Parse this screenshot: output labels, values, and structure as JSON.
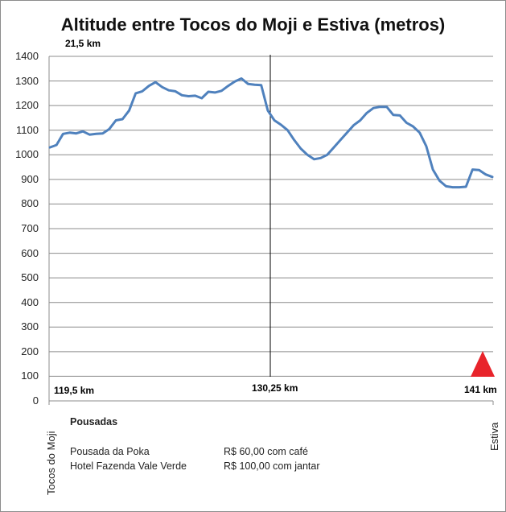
{
  "chart_data": {
    "type": "line",
    "title": "Altitude entre Tocos do Moji e Estiva (metros)",
    "ylim": [
      0,
      1400
    ],
    "yticks": [
      "0",
      "100",
      "200",
      "300",
      "400",
      "500",
      "600",
      "700",
      "800",
      "900",
      "1000",
      "1100",
      "1200",
      "1300",
      "1400"
    ],
    "grid": true,
    "x_start_label": "Tocos do Moji",
    "x_end_label": "Estiva",
    "series": [
      {
        "values": [
          1030,
          1040,
          1085,
          1090,
          1087,
          1095,
          1082,
          1085,
          1087,
          1105,
          1140,
          1145,
          1180,
          1250,
          1258,
          1280,
          1295,
          1275,
          1262,
          1258,
          1242,
          1238,
          1240,
          1230,
          1256,
          1253,
          1260,
          1280,
          1298,
          1310,
          1288,
          1285,
          1283,
          1180,
          1140,
          1122,
          1100,
          1060,
          1025,
          1000,
          982,
          987,
          1000,
          1030,
          1060,
          1090,
          1120,
          1140,
          1170,
          1190,
          1195,
          1195,
          1162,
          1160,
          1130,
          1115,
          1090,
          1035,
          940,
          895,
          872,
          868,
          868,
          870,
          940,
          938,
          920,
          910
        ]
      }
    ],
    "color": "#4f81bd",
    "annotations": {
      "top_km": "21,5 km",
      "start_km": "119,5 km",
      "mid_km": "130,25 km",
      "end_km": "141 km"
    }
  },
  "pousadas": {
    "heading": "Pousadas",
    "items": [
      {
        "name": "Pousada da Poka",
        "price": "R$ 60,00 com café"
      },
      {
        "name": "Hotel Fazenda Vale Verde",
        "price": "R$ 100,00 com jantar"
      }
    ]
  },
  "colors": {
    "marker": "#e8242b",
    "grid": "#8c8c8c"
  }
}
